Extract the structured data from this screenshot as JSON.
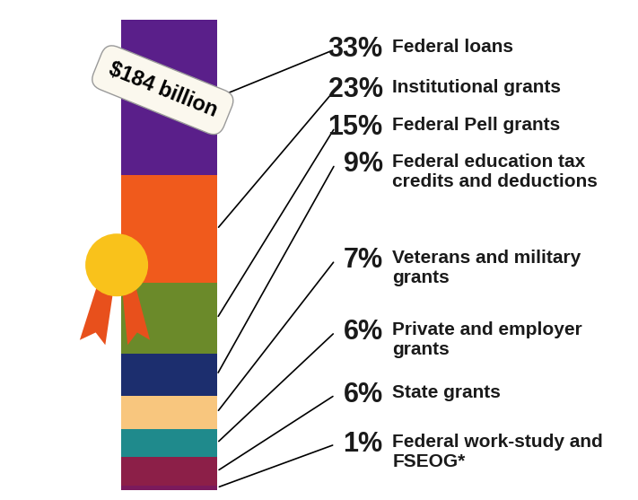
{
  "chart_data": {
    "type": "bar",
    "title": "$184 billion",
    "stacked": true,
    "data_labels": true,
    "tick_labels": false,
    "categories": [
      null
    ],
    "ylim": [
      0,
      100
    ],
    "series": [
      {
        "name": "Federal loans",
        "color": "#5a1f8a",
        "values": [
          33
        ],
        "value_labels": [
          "33%"
        ]
      },
      {
        "name": "Institutional grants",
        "color": "#f05a1c",
        "values": [
          23
        ],
        "value_labels": [
          "23%"
        ]
      },
      {
        "name": "Federal Pell grants",
        "color": "#6b8a2a",
        "values": [
          15
        ],
        "value_labels": [
          "15%"
        ]
      },
      {
        "name": "Federal education tax credits and deductions",
        "color": "#1c2e6e",
        "values": [
          9
        ],
        "value_labels": [
          "9%"
        ]
      },
      {
        "name": "Veterans and military grants",
        "color": "#f8c67e",
        "values": [
          7
        ],
        "value_labels": [
          "7%"
        ]
      },
      {
        "name": "Private and employer grants",
        "color": "#1f8a8c",
        "values": [
          6
        ],
        "value_labels": [
          "6%"
        ]
      },
      {
        "name": "State grants",
        "color": "#8c1f48",
        "values": [
          6
        ],
        "value_labels": [
          "6%"
        ]
      },
      {
        "name": "Federal work-study and FSEOG*",
        "color": "#7a1a5c",
        "values": [
          1
        ],
        "value_labels": [
          "1%"
        ]
      }
    ]
  }
}
